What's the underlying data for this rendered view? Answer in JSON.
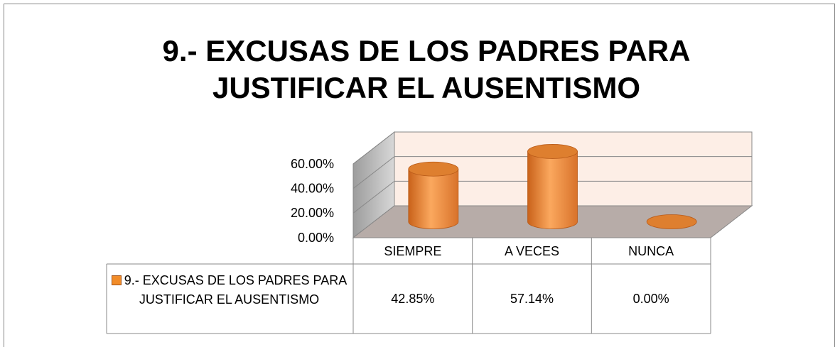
{
  "chart_data": {
    "type": "bar",
    "title": "9.- EXCUSAS DE LOS PADRES PARA JUSTIFICAR EL AUSENTISMO",
    "categories": [
      "SIEMPRE",
      "A VECES",
      "NUNCA"
    ],
    "series": [
      {
        "name": "9.- EXCUSAS DE LOS PADRES PARA JUSTIFICAR EL AUSENTISMO",
        "color": "#f28c28",
        "values": [
          42.85,
          57.14,
          0
        ],
        "value_labels": [
          "42.85%",
          "57.14%",
          "0.00%"
        ]
      }
    ],
    "ylim": [
      0,
      60
    ],
    "yticks": [
      {
        "value": 0,
        "label": "0.00%"
      },
      {
        "value": 20,
        "label": "20.00%"
      },
      {
        "value": 40,
        "label": "40.00%"
      },
      {
        "value": 60,
        "label": "60.00%"
      }
    ],
    "grid": true,
    "legend": "table"
  }
}
